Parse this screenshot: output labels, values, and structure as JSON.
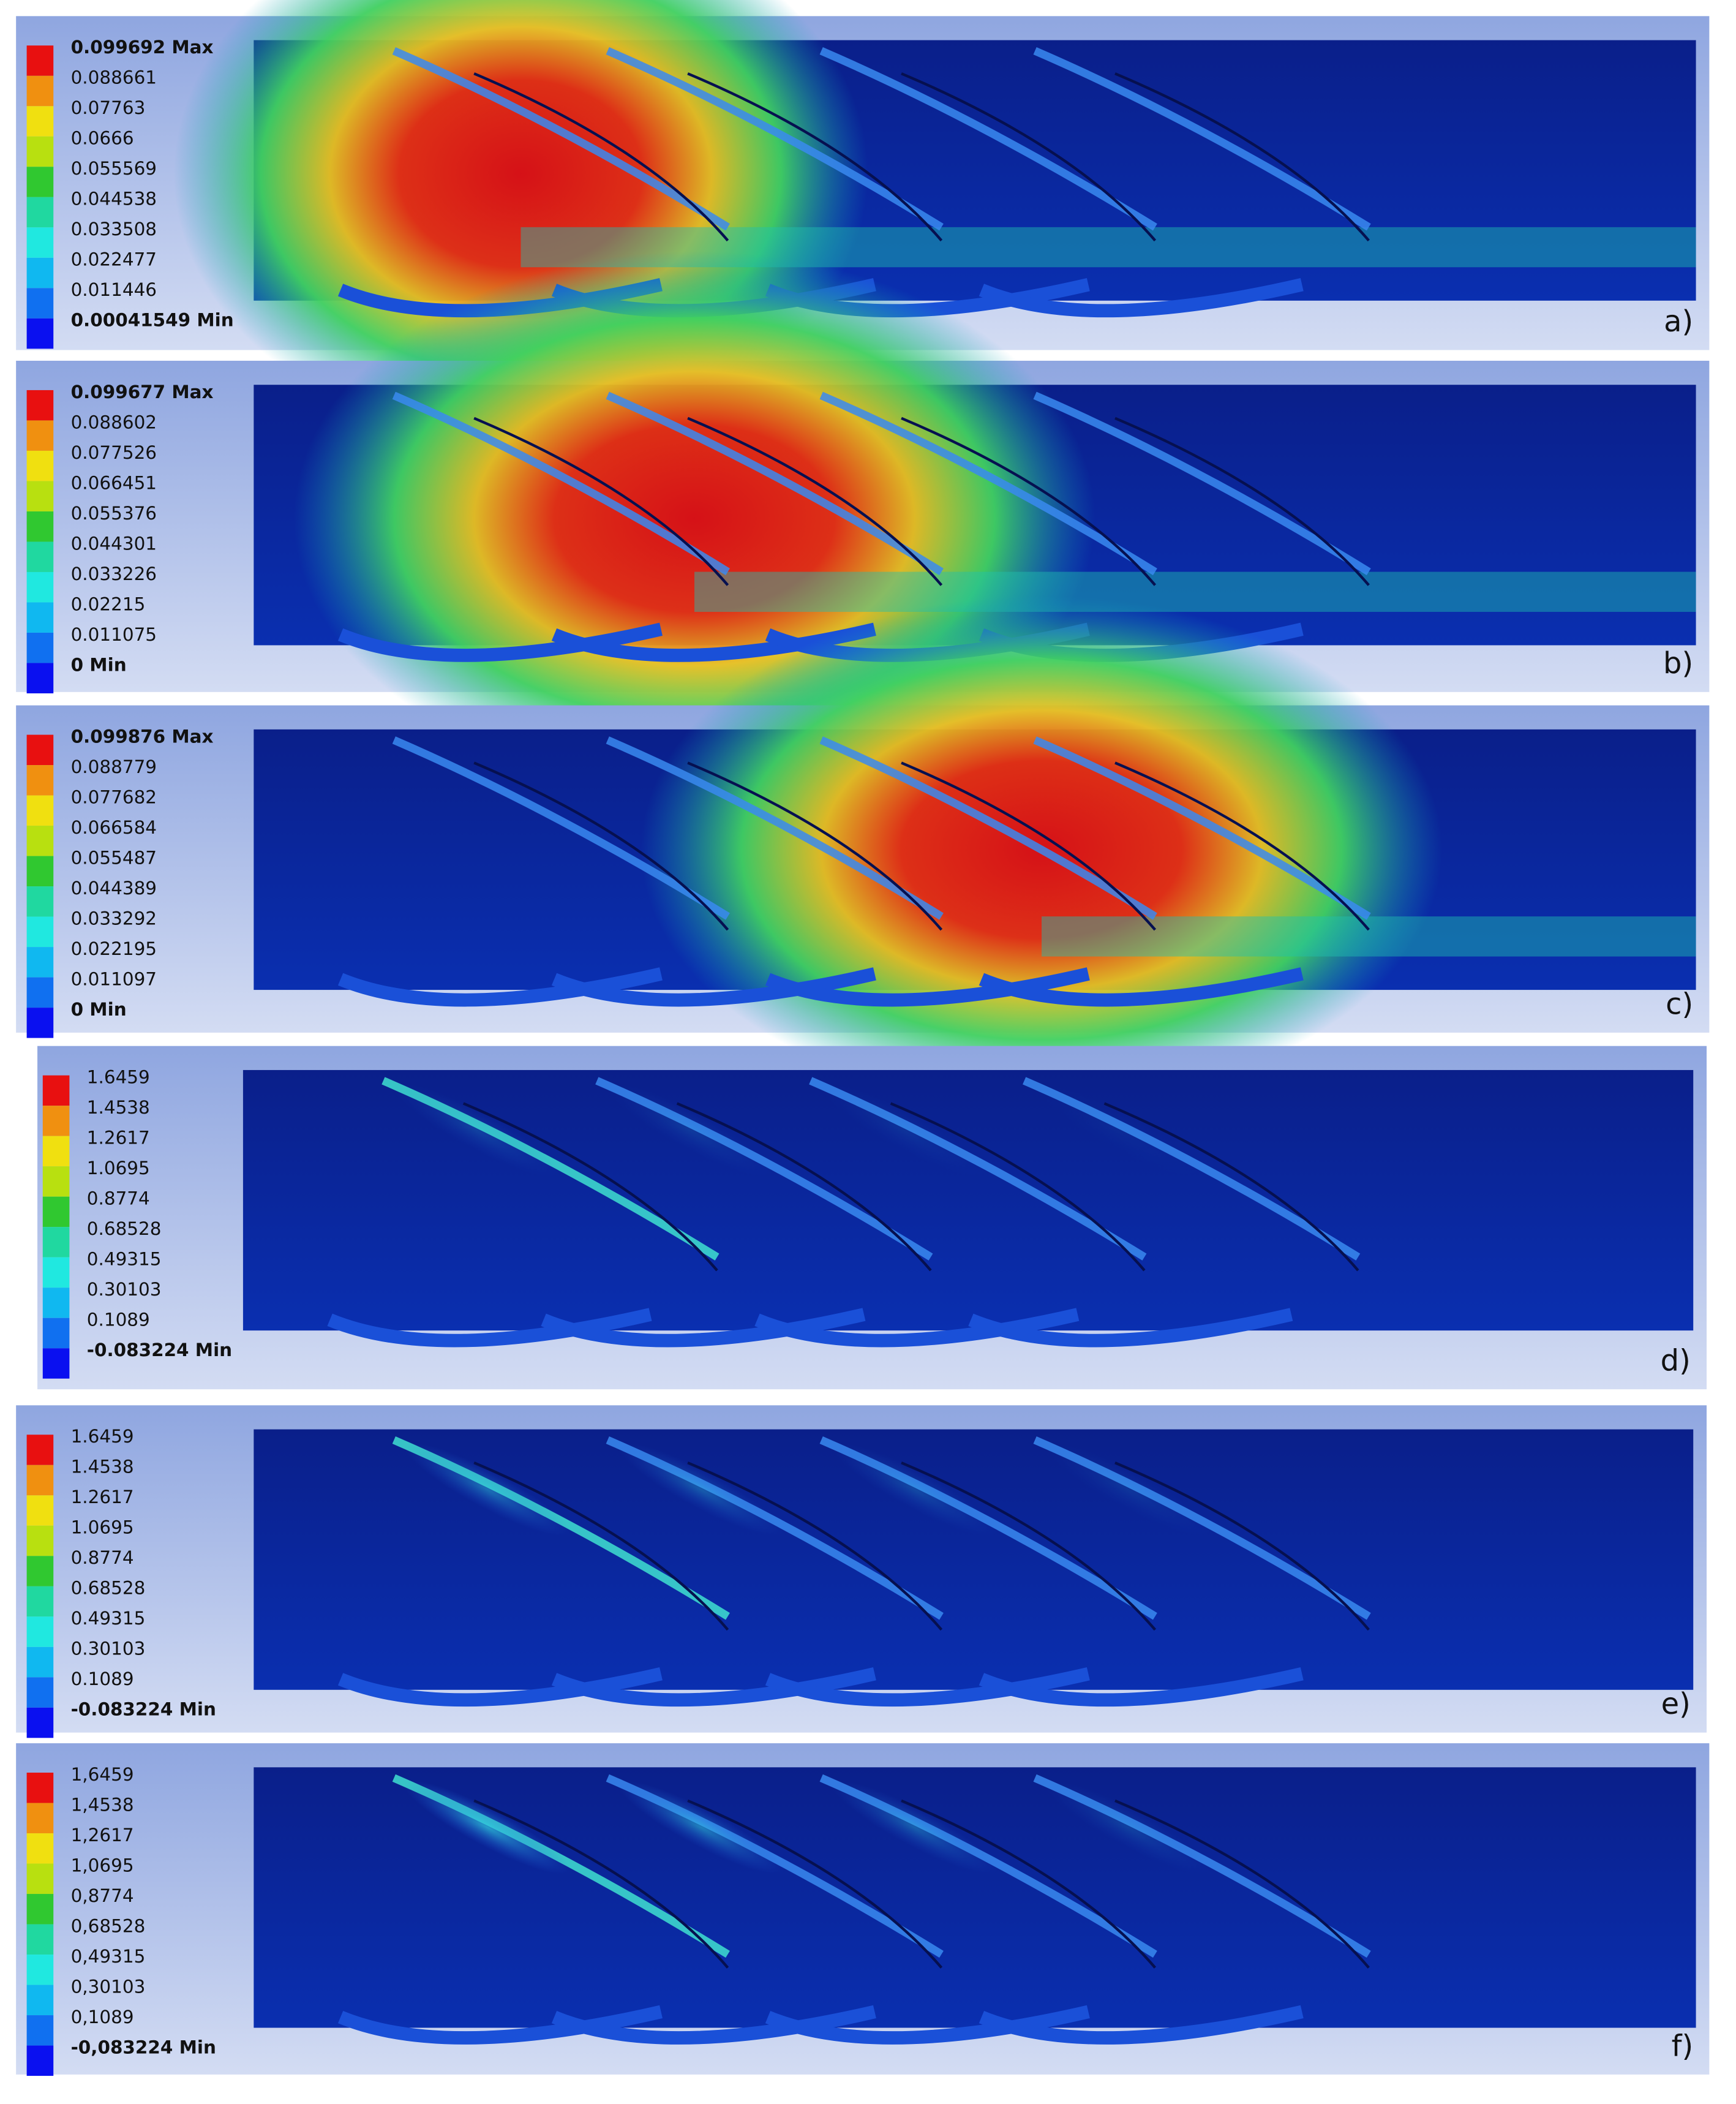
{
  "panels": [
    {
      "label": "a)",
      "legend": [
        "0.099692 Max",
        "0.088661",
        "0.07763",
        "0.0666",
        "0.055569",
        "0.044538",
        "0.033508",
        "0.022477",
        "0.011446",
        "0.00041549 Min"
      ]
    },
    {
      "label": "b)",
      "legend": [
        "0.099677 Max",
        "0.088602",
        "0.077526",
        "0.066451",
        "0.055376",
        "0.044301",
        "0.033226",
        "0.02215",
        "0.011075",
        "0 Min"
      ]
    },
    {
      "label": "c)",
      "legend": [
        "0.099876 Max",
        "0.088779",
        "0.077682",
        "0.066584",
        "0.055487",
        "0.044389",
        "0.033292",
        "0.022195",
        "0.011097",
        "0 Min"
      ]
    },
    {
      "label": "d)",
      "legend": [
        "1.6459",
        "1.4538",
        "1.2617",
        "1.0695",
        "0.8774",
        "0.68528",
        "0.49315",
        "0.30103",
        "0.1089",
        "-0.083224 Min"
      ]
    },
    {
      "label": "e)",
      "legend": [
        "1.6459",
        "1.4538",
        "1.2617",
        "1.0695",
        "0.8774",
        "0.68528",
        "0.49315",
        "0.30103",
        "0.1089",
        "-0.083224 Min"
      ]
    },
    {
      "label": "f)",
      "legend": [
        "1,6459",
        "1,4538",
        "1,2617",
        "1,0695",
        "0,8774",
        "0,68528",
        "0,49315",
        "0,30103",
        "0,1089",
        "-0,083224 Min"
      ]
    }
  ]
}
